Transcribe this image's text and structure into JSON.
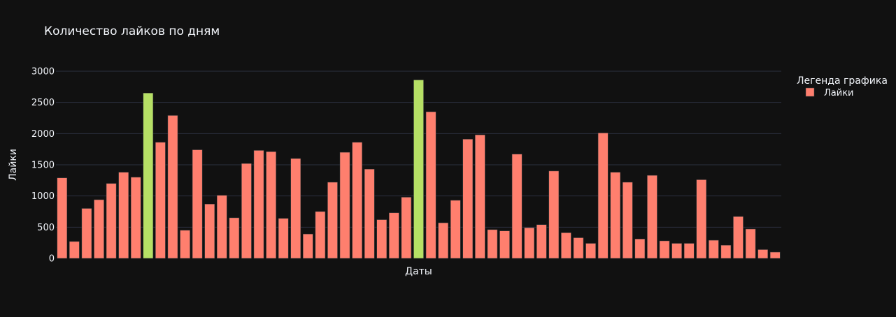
{
  "chart_data": {
    "type": "bar",
    "title": "Количество лайков по дням",
    "xlabel": "Даты",
    "ylabel": "Лайки",
    "ylim": [
      0,
      3000
    ],
    "yticks": [
      0,
      500,
      1000,
      1500,
      2000,
      2500,
      3000
    ],
    "grid": true,
    "legend": {
      "title": "Легенда графика",
      "placement": "top-right",
      "entries": [
        "Лайки"
      ]
    },
    "series": [
      {
        "name": "Лайки",
        "values": [
          1290,
          270,
          800,
          940,
          1200,
          1380,
          1300,
          2650,
          1860,
          2290,
          450,
          1740,
          870,
          1010,
          650,
          1520,
          1730,
          1710,
          640,
          1600,
          390,
          750,
          1220,
          1700,
          1860,
          1430,
          620,
          730,
          980,
          2860,
          2350,
          570,
          930,
          1910,
          1980,
          460,
          440,
          1670,
          490,
          540,
          1400,
          410,
          330,
          240,
          2010,
          1380,
          1220,
          310,
          1330,
          280,
          240,
          240,
          1260,
          290,
          210,
          670,
          470,
          140,
          100
        ]
      }
    ],
    "colors": {
      "bar": "#FF7F6E",
      "highlight": "#B6E065",
      "background": "#111111",
      "grid": "#2C3140",
      "text": "#F2F5FA",
      "bar_outline": "#444444"
    },
    "highlighted_indices": [
      7,
      29
    ]
  }
}
